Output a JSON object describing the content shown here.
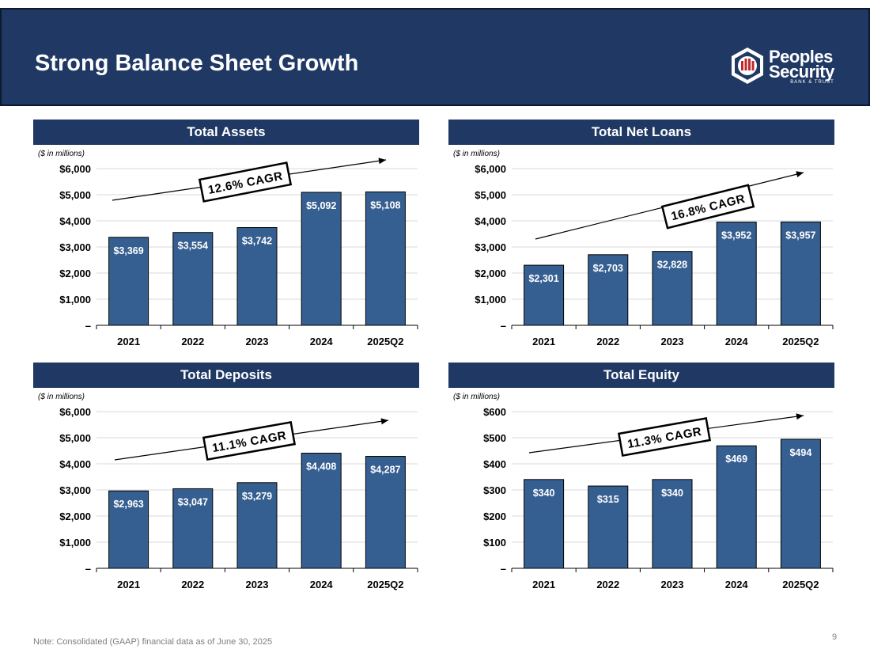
{
  "slide": {
    "title": "Strong Balance Sheet Growth",
    "note": "Note: Consolidated (GAAP) financial data as of June 30, 2025",
    "page_number": "9"
  },
  "logo": {
    "word1": "Peoples",
    "word2": "Security",
    "sub": "BANK & TRUST",
    "colors": {
      "red": "#c0282d",
      "white": "#ffffff"
    }
  },
  "colors": {
    "header_bg": "#1f3864",
    "bar_fill": "#365f91",
    "bar_stroke": "#000000",
    "grid": "#d9d9d9"
  },
  "chart_data": [
    {
      "type": "bar",
      "title": "Total Assets",
      "unit_note": "($ in millions)",
      "categories": [
        "2021",
        "2022",
        "2023",
        "2024",
        "2025Q2"
      ],
      "values": [
        3369,
        3554,
        3742,
        5092,
        5108
      ],
      "value_labels": [
        "$3,369",
        "$3,554",
        "$3,742",
        "$5,092",
        "$5,108"
      ],
      "ylim": [
        0,
        6000
      ],
      "yticks": [
        0,
        1000,
        2000,
        3000,
        4000,
        5000,
        6000
      ],
      "ytick_labels": [
        "–",
        "$1,000",
        "$2,000",
        "$3,000",
        "$4,000",
        "$5,000",
        "$6,000"
      ],
      "cagr_label": "12.6% CAGR",
      "grid": true
    },
    {
      "type": "bar",
      "title": "Total Net Loans",
      "unit_note": "($ in millions)",
      "categories": [
        "2021",
        "2022",
        "2023",
        "2024",
        "2025Q2"
      ],
      "values": [
        2301,
        2703,
        2828,
        3952,
        3957
      ],
      "value_labels": [
        "$2,301",
        "$2,703",
        "$2,828",
        "$3,952",
        "$3,957"
      ],
      "ylim": [
        0,
        6000
      ],
      "yticks": [
        0,
        1000,
        2000,
        3000,
        4000,
        5000,
        6000
      ],
      "ytick_labels": [
        "–",
        "$1,000",
        "$2,000",
        "$3,000",
        "$4,000",
        "$5,000",
        "$6,000"
      ],
      "cagr_label": "16.8% CAGR",
      "grid": true
    },
    {
      "type": "bar",
      "title": "Total Deposits",
      "unit_note": "($ in millions)",
      "categories": [
        "2021",
        "2022",
        "2023",
        "2024",
        "2025Q2"
      ],
      "values": [
        2963,
        3047,
        3279,
        4408,
        4287
      ],
      "value_labels": [
        "$2,963",
        "$3,047",
        "$3,279",
        "$4,408",
        "$4,287"
      ],
      "ylim": [
        0,
        6000
      ],
      "yticks": [
        0,
        1000,
        2000,
        3000,
        4000,
        5000,
        6000
      ],
      "ytick_labels": [
        "–",
        "$1,000",
        "$2,000",
        "$3,000",
        "$4,000",
        "$5,000",
        "$6,000"
      ],
      "cagr_label": "11.1% CAGR",
      "grid": true
    },
    {
      "type": "bar",
      "title": "Total Equity",
      "unit_note": "($ in millions)",
      "categories": [
        "2021",
        "2022",
        "2023",
        "2024",
        "2025Q2"
      ],
      "values": [
        340,
        315,
        340,
        469,
        494
      ],
      "value_labels": [
        "$340",
        "$315",
        "$340",
        "$469",
        "$494"
      ],
      "ylim": [
        0,
        600
      ],
      "yticks": [
        0,
        100,
        200,
        300,
        400,
        500,
        600
      ],
      "ytick_labels": [
        "–",
        "$100",
        "$200",
        "$300",
        "$400",
        "$500",
        "$600"
      ],
      "cagr_label": "11.3% CAGR",
      "grid": true
    }
  ]
}
